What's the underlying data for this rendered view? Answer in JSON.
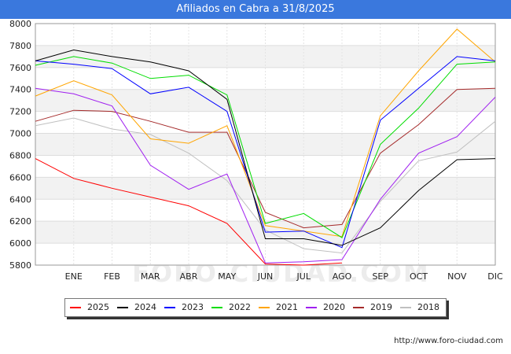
{
  "header": {
    "title": "Afiliados en Cabra a 31/8/2025"
  },
  "source": "http://www.foro-ciudad.com",
  "watermark": "FORO-CIUDAD.COM",
  "chart_data": {
    "type": "line",
    "title": "Afiliados en Cabra a 31/8/2025",
    "categories": [
      "",
      "ENE",
      "FEB",
      "MAR",
      "ABR",
      "MAY",
      "JUN",
      "JUL",
      "AGO",
      "SEP",
      "OCT",
      "NOV",
      "DIC"
    ],
    "ylim": [
      5800,
      8000
    ],
    "yticks": [
      5800,
      6000,
      6200,
      6400,
      6600,
      6800,
      7000,
      7200,
      7400,
      7600,
      7800,
      8000
    ],
    "grid": true,
    "legend_position": "bottom",
    "series": [
      {
        "name": "2025",
        "color": "#ff0000",
        "values": [
          6770,
          6590,
          6500,
          6420,
          6340,
          6180,
          5810,
          5800,
          5820,
          null,
          null,
          null,
          null
        ]
      },
      {
        "name": "2024",
        "color": "#000000",
        "values": [
          7660,
          7760,
          7700,
          7650,
          7570,
          7310,
          6040,
          6040,
          5980,
          6140,
          6480,
          6760,
          6770
        ]
      },
      {
        "name": "2023",
        "color": "#0000ff",
        "values": [
          7660,
          7630,
          7590,
          7360,
          7420,
          7200,
          6100,
          6110,
          5960,
          7120,
          7410,
          7700,
          7660
        ]
      },
      {
        "name": "2022",
        "color": "#00dd00",
        "values": [
          7620,
          7700,
          7640,
          7500,
          7530,
          7350,
          6180,
          6270,
          6050,
          6900,
          7230,
          7630,
          7650
        ]
      },
      {
        "name": "2021",
        "color": "#ffa500",
        "values": [
          7340,
          7480,
          7350,
          6950,
          6910,
          7070,
          6160,
          6110,
          6060,
          7160,
          7570,
          7950,
          7650
        ]
      },
      {
        "name": "2020",
        "color": "#a020f0",
        "values": [
          7410,
          7360,
          7250,
          6710,
          6490,
          6630,
          5820,
          5830,
          5850,
          6400,
          6820,
          6970,
          7330
        ]
      },
      {
        "name": "2019",
        "color": "#a52a2a",
        "values": [
          7110,
          7210,
          7200,
          7110,
          7010,
          7010,
          6280,
          6140,
          6170,
          6820,
          7080,
          7400,
          7410
        ]
      },
      {
        "name": "2018",
        "color": "#c0c0c0",
        "values": [
          7070,
          7140,
          7040,
          6990,
          6820,
          6570,
          6120,
          5950,
          5910,
          6380,
          6750,
          6830,
          7110
        ]
      }
    ]
  }
}
